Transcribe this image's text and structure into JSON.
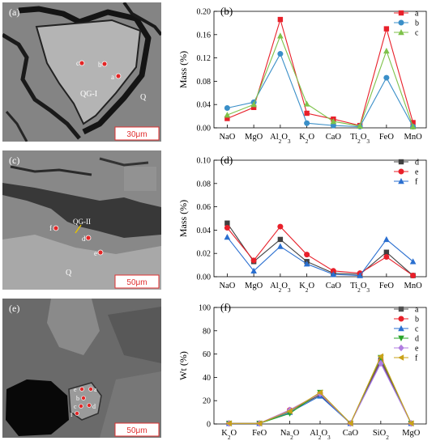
{
  "figure": {
    "images": [
      {
        "label": "(a)",
        "scale": "30μm",
        "region_labels": [
          "QG-I",
          "Q"
        ],
        "spots": [
          "c",
          "b",
          "a"
        ]
      },
      {
        "label": "(c)",
        "scale": "50μm",
        "region_labels": [
          "QG-II",
          "Q"
        ],
        "spots": [
          "f",
          "d",
          "e"
        ]
      },
      {
        "label": "(e)",
        "scale": "50μm",
        "region_labels": [],
        "spots": [
          "e",
          "a",
          "b",
          "c",
          "d",
          "f"
        ]
      }
    ]
  },
  "chart_data": [
    {
      "panel_label": "(b)",
      "type": "line",
      "categories": [
        "NaO",
        "MgO",
        "Al2O3",
        "K2O",
        "CaO",
        "Ti2O3",
        "FeO",
        "MnO"
      ],
      "ylabel": "Mass (%)",
      "ylim": [
        0,
        0.2
      ],
      "yticks": [
        "0.00",
        "0.04",
        "0.08",
        "0.12",
        "0.16",
        "0.20"
      ],
      "legend_position": "top-right",
      "series": [
        {
          "name": "a",
          "color": "#e8202a",
          "marker": "square",
          "values": [
            0.016,
            0.035,
            0.186,
            0.025,
            0.015,
            0.004,
            0.17,
            0.009
          ]
        },
        {
          "name": "b",
          "color": "#3a8fc8",
          "marker": "circle",
          "values": [
            0.034,
            0.044,
            0.127,
            0.008,
            0.004,
            0.002,
            0.086,
            0.002
          ]
        },
        {
          "name": "c",
          "color": "#7ec24a",
          "marker": "triangle-up",
          "values": [
            0.022,
            0.04,
            0.158,
            0.041,
            0.011,
            0.003,
            0.132,
            0.002
          ]
        }
      ]
    },
    {
      "panel_label": "(d)",
      "type": "line",
      "categories": [
        "NaO",
        "MgO",
        "Al2O3",
        "K2O",
        "CaO",
        "Ti2O3",
        "FeO",
        "MnO"
      ],
      "ylabel": "Mass (%)",
      "ylim": [
        0,
        0.1
      ],
      "yticks": [
        "0.00",
        "0.02",
        "0.04",
        "0.06",
        "0.08",
        "0.10"
      ],
      "legend_position": "top-right",
      "series": [
        {
          "name": "d",
          "color": "#404040",
          "marker": "square",
          "values": [
            0.046,
            0.013,
            0.032,
            0.013,
            0.003,
            0.002,
            0.021,
            0.001
          ]
        },
        {
          "name": "e",
          "color": "#e8202a",
          "marker": "circle",
          "values": [
            0.042,
            0.014,
            0.043,
            0.019,
            0.005,
            0.003,
            0.017,
            0.001
          ]
        },
        {
          "name": "f",
          "color": "#2a6fd0",
          "marker": "triangle-up",
          "values": [
            0.034,
            0.005,
            0.026,
            0.011,
            0.002,
            0.001,
            0.032,
            0.013
          ]
        }
      ]
    },
    {
      "panel_label": "(f)",
      "type": "line",
      "categories": [
        "K2O",
        "FeO",
        "Na2O",
        "Al2O3",
        "CaO",
        "SiO2",
        "MgO"
      ],
      "ylabel": "Wt (%)",
      "ylim": [
        0,
        100
      ],
      "yticks": [
        "0",
        "20",
        "40",
        "60",
        "80",
        "100"
      ],
      "legend_position": "top-right",
      "series": [
        {
          "name": "a",
          "color": "#505050",
          "marker": "square",
          "values": [
            0.5,
            0.5,
            11,
            25,
            0.5,
            55,
            0.5
          ]
        },
        {
          "name": "b",
          "color": "#e8202a",
          "marker": "circle",
          "values": [
            0.5,
            0.5,
            12,
            26,
            0.5,
            54,
            0.5
          ]
        },
        {
          "name": "c",
          "color": "#2a6fd0",
          "marker": "triangle-up",
          "values": [
            0.5,
            0.5,
            10,
            24,
            0.5,
            53,
            0.5
          ]
        },
        {
          "name": "d",
          "color": "#2aa52a",
          "marker": "triangle-down",
          "values": [
            0.5,
            0.5,
            9,
            27,
            0.5,
            57,
            0.5
          ]
        },
        {
          "name": "e",
          "color": "#b07ee0",
          "marker": "diamond",
          "values": [
            0.5,
            0.5,
            12,
            26,
            0.5,
            52,
            0.5
          ]
        },
        {
          "name": "f",
          "color": "#c9a21a",
          "marker": "triangle-left",
          "values": [
            0.5,
            0.5,
            11,
            27,
            0.5,
            58,
            0.5
          ]
        }
      ]
    }
  ]
}
